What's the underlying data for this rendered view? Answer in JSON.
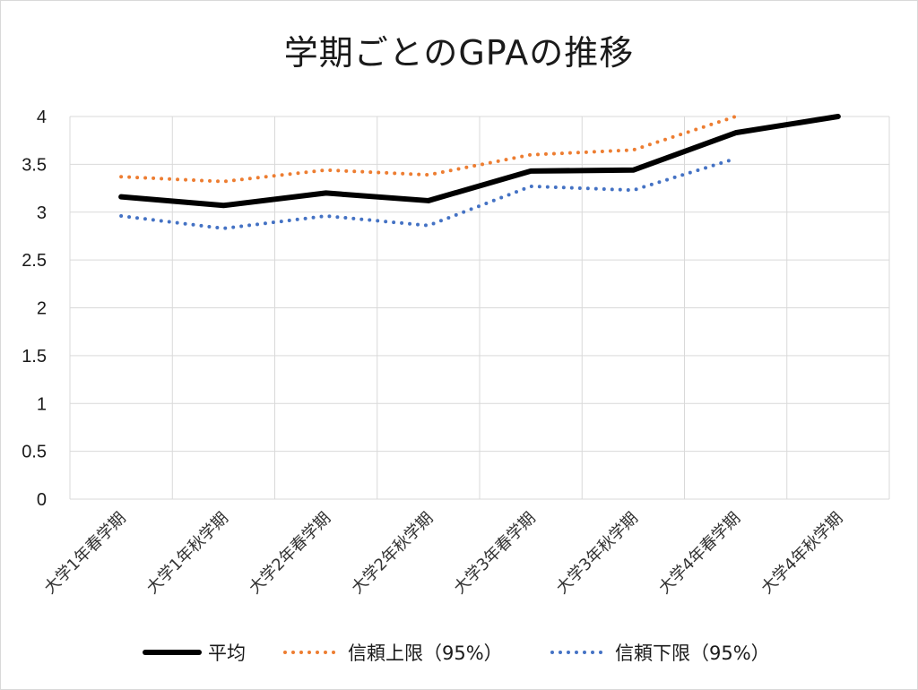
{
  "chart_data": {
    "type": "line",
    "title": "学期ごとのGPAの推移",
    "xlabel": "",
    "ylabel": "",
    "categories": [
      "大学1年春学期",
      "大学1年秋学期",
      "大学2年春学期",
      "大学2年秋学期",
      "大学3年春学期",
      "大学3年秋学期",
      "大学4年春学期",
      "大学4年秋学期"
    ],
    "ylim": [
      0,
      4
    ],
    "yticks": [
      0,
      0.5,
      1,
      1.5,
      2,
      2.5,
      3,
      3.5,
      4
    ],
    "ytick_labels": [
      "0",
      "0.5",
      "1",
      "1.5",
      "2",
      "2.5",
      "3",
      "3.5",
      "4"
    ],
    "grid": true,
    "legend_position": "bottom",
    "series": [
      {
        "name": "平均",
        "color": "#000000",
        "style": "solid",
        "values": [
          3.16,
          3.07,
          3.2,
          3.12,
          3.43,
          3.44,
          3.83,
          4.0
        ]
      },
      {
        "name": "信頼上限（95%）",
        "color": "#ED7D31",
        "style": "dotted",
        "values": [
          3.37,
          3.32,
          3.44,
          3.39,
          3.6,
          3.65,
          4.0,
          null
        ]
      },
      {
        "name": "信頼下限（95%）",
        "color": "#4472C4",
        "style": "dotted",
        "values": [
          2.96,
          2.83,
          2.96,
          2.86,
          3.27,
          3.23,
          3.56,
          null
        ]
      }
    ]
  }
}
